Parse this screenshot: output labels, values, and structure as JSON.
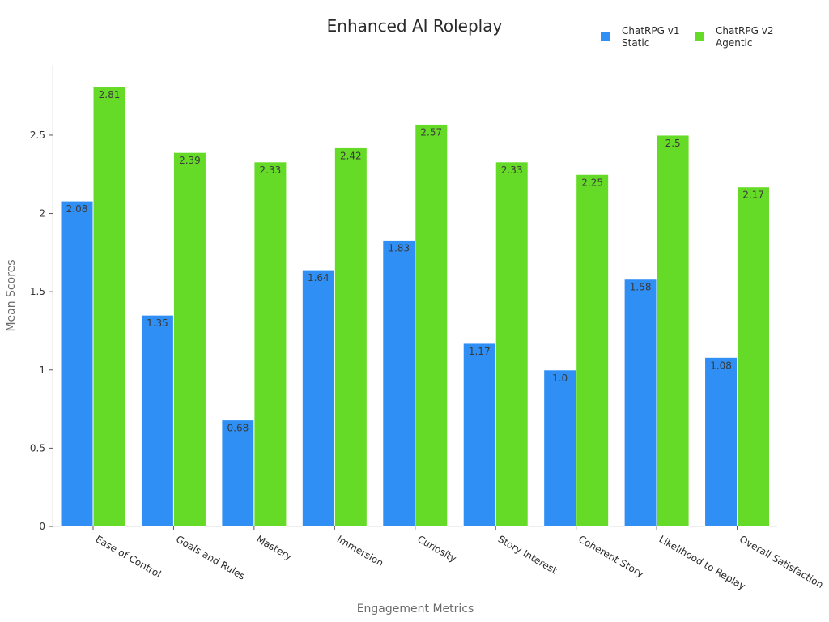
{
  "chart_data": {
    "type": "bar",
    "title": "Enhanced AI Roleplay",
    "xlabel": "Engagement Metrics",
    "ylabel": "Mean Scores",
    "ylim": [
      0,
      2.95
    ],
    "yticks": [
      {
        "value": 0,
        "label": "0"
      },
      {
        "value": 0.5,
        "label": "0.5"
      },
      {
        "value": 1,
        "label": "1"
      },
      {
        "value": 1.5,
        "label": "1.5"
      },
      {
        "value": 2,
        "label": "2"
      },
      {
        "value": 2.5,
        "label": "2.5"
      }
    ],
    "categories": [
      "Ease of Control",
      "Goals and Rules",
      "Mastery",
      "Immersion",
      "Curiosity",
      "Story Interest",
      "Coherent Story",
      "Likelihood to Replay",
      "Overall Satisfaction"
    ],
    "series": [
      {
        "name": "ChatRPG v1\nStatic",
        "color": "#2f8ff5",
        "values": [
          2.08,
          1.35,
          0.68,
          1.64,
          1.83,
          1.17,
          1.0,
          1.58,
          1.08
        ],
        "labels": [
          "2.08",
          "1.35",
          "0.68",
          "1.64",
          "1.83",
          "1.17",
          "1.0",
          "1.58",
          "1.08"
        ]
      },
      {
        "name": "ChatRPG v2\nAgentic",
        "color": "#66db27",
        "values": [
          2.81,
          2.39,
          2.33,
          2.42,
          2.57,
          2.33,
          2.25,
          2.5,
          2.17
        ],
        "labels": [
          "2.81",
          "2.39",
          "2.33",
          "2.42",
          "2.57",
          "2.33",
          "2.25",
          "2.5",
          "2.17"
        ]
      }
    ],
    "grid": false,
    "legend": "top-right"
  }
}
